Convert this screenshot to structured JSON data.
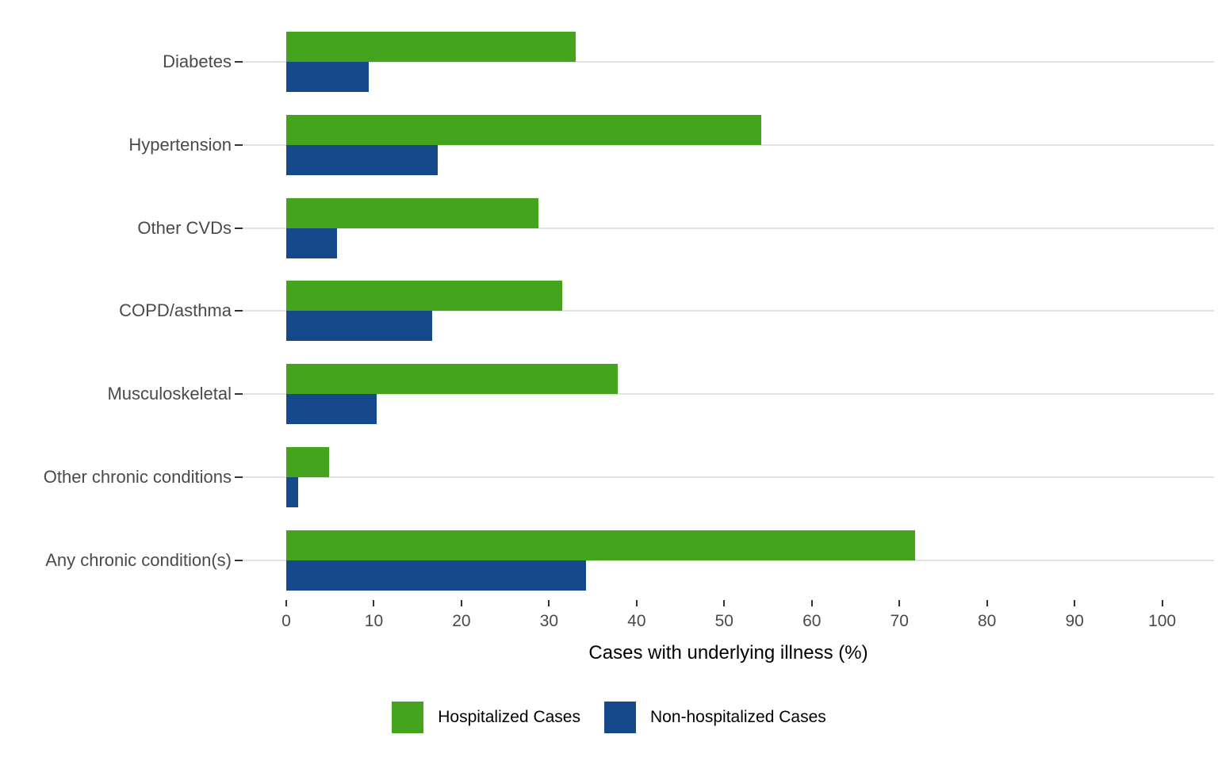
{
  "chart_data": {
    "type": "bar",
    "orientation": "horizontal",
    "title": "",
    "xlabel": "Cases with underlying illness (%)",
    "ylabel": "",
    "xlim": [
      0,
      100
    ],
    "xticks": [
      0,
      10,
      20,
      30,
      40,
      50,
      60,
      70,
      80,
      90,
      100
    ],
    "grid": "horizontal category gridlines only",
    "legend_position": "bottom",
    "background_color": "#ffffff",
    "gridline_color": "#e2e2e2",
    "tick_color": "#333333",
    "axis_text_color": "#4a4a4a",
    "categories": [
      "Diabetes",
      "Hypertension",
      "Other CVDs",
      "COPD/asthma",
      "Musculoskeletal",
      "Other chronic conditions",
      "Any chronic condition(s)"
    ],
    "series": [
      {
        "name": "Hospitalized Cases",
        "color": "#45a41e",
        "values": [
          33.0,
          54.2,
          28.8,
          31.5,
          37.8,
          4.9,
          71.8
        ]
      },
      {
        "name": "Non-hospitalized Cases",
        "color": "#16498b",
        "values": [
          9.4,
          17.3,
          5.8,
          16.7,
          10.3,
          1.4,
          34.2
        ]
      }
    ]
  }
}
